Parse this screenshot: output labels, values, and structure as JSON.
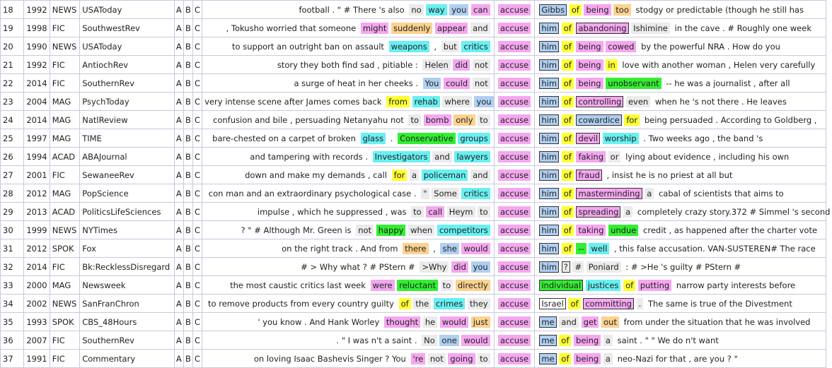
{
  "colors": {
    "0": "transparent",
    "1": "#f5a7f0",
    "2": "#fbd28e",
    "3": "#69f0f2",
    "4": "#ffff33",
    "5": "#33ee33",
    "6": "#b0cff2",
    "7": "#ebebeb",
    "8": "#f5a7f0"
  },
  "node": {
    "word": "accuse",
    "color": 8
  },
  "options": [
    "A",
    "B",
    "C"
  ],
  "rows": [
    {
      "num": "18",
      "year": "1992",
      "genre": "NEWS",
      "source": "USAToday",
      "left": [
        [
          "football . \" # There 's also",
          0
        ],
        [
          "no",
          7
        ],
        [
          "way",
          3
        ],
        [
          "you",
          6
        ],
        [
          "can",
          1
        ]
      ],
      "right": [
        [
          "Gibbs",
          6,
          1
        ],
        [
          "of",
          4
        ],
        [
          "being",
          1
        ],
        [
          "too",
          2
        ],
        [
          "stodgy or predictable (though he still has",
          0
        ]
      ]
    },
    {
      "num": "19",
      "year": "1998",
      "genre": "FIC",
      "source": "SouthwestRev",
      "left": [
        [
          ", Tokusho worried that someone",
          0
        ],
        [
          "might",
          1
        ],
        [
          "suddenly",
          2
        ],
        [
          "appear",
          1
        ],
        [
          "and",
          7
        ]
      ],
      "right": [
        [
          "him",
          6,
          1
        ],
        [
          "of",
          4
        ],
        [
          "abandoning",
          1,
          1
        ],
        [
          "Ishimine",
          7
        ],
        [
          "in the cave . # Roughly one week",
          0
        ]
      ]
    },
    {
      "num": "20",
      "year": "1990",
      "genre": "NEWS",
      "source": "USAToday",
      "left": [
        [
          "to support an outright ban on assault",
          0
        ],
        [
          "weapons",
          3
        ],
        [
          ",",
          0
        ],
        [
          "but",
          7
        ],
        [
          "critics",
          3
        ]
      ],
      "right": [
        [
          "him",
          6,
          1
        ],
        [
          "of",
          4
        ],
        [
          "being",
          1
        ],
        [
          "cowed",
          1
        ],
        [
          "by the powerful NRA . How do you",
          0
        ]
      ]
    },
    {
      "num": "21",
      "year": "1992",
      "genre": "FIC",
      "source": "AntiochRev",
      "left": [
        [
          "story they both find sad , pitiable :",
          0
        ],
        [
          "Helen",
          7
        ],
        [
          "did",
          1
        ],
        [
          "not",
          7
        ]
      ],
      "right": [
        [
          "him",
          6,
          1
        ],
        [
          "of",
          4
        ],
        [
          "being",
          1
        ],
        [
          "in",
          4
        ],
        [
          "love with another woman , Helen very carefully",
          0
        ]
      ]
    },
    {
      "num": "22",
      "year": "2014",
      "genre": "FIC",
      "source": "SouthernRev",
      "left": [
        [
          "a surge of heat in her cheeks .",
          0
        ],
        [
          "You",
          6
        ],
        [
          "could",
          1
        ],
        [
          "not",
          7
        ]
      ],
      "right": [
        [
          "him",
          6,
          1
        ],
        [
          "of",
          4
        ],
        [
          "being",
          1
        ],
        [
          "unobservant",
          5
        ],
        [
          "-- he was a journalist , after all",
          0
        ]
      ]
    },
    {
      "num": "23",
      "year": "2004",
      "genre": "MAG",
      "source": "PsychToday",
      "left": [
        [
          "very intense scene after James comes back",
          0
        ],
        [
          "from",
          4
        ],
        [
          "rehab",
          3
        ],
        [
          "where",
          7
        ],
        [
          "you",
          6
        ]
      ],
      "right": [
        [
          "him",
          6,
          1
        ],
        [
          "of",
          4
        ],
        [
          "controlling",
          1,
          1
        ],
        [
          "even",
          7
        ],
        [
          "when he 's not there . He leaves",
          0
        ]
      ]
    },
    {
      "num": "24",
      "year": "2014",
      "genre": "MAG",
      "source": "NatlReview",
      "left": [
        [
          "confusion and bile , persuading Netanyahu not",
          0
        ],
        [
          "to",
          7
        ],
        [
          "bomb",
          1
        ],
        [
          "only",
          2
        ],
        [
          "to",
          7
        ]
      ],
      "right": [
        [
          "him",
          6,
          1
        ],
        [
          "of",
          4
        ],
        [
          "cowardice",
          6,
          1
        ],
        [
          "for",
          4
        ],
        [
          "being persuaded . According to Goldberg ,",
          0
        ]
      ]
    },
    {
      "num": "25",
      "year": "1997",
      "genre": "MAG",
      "source": "TIME",
      "left": [
        [
          "bare-chested on a carpet of broken",
          0
        ],
        [
          "glass",
          3
        ],
        [
          ".",
          0
        ],
        [
          "Conservative",
          5
        ],
        [
          "groups",
          3
        ]
      ],
      "right": [
        [
          "him",
          6,
          1
        ],
        [
          "of",
          4
        ],
        [
          "devil",
          1,
          1
        ],
        [
          "worship",
          3
        ],
        [
          ". Two weeks ago , the band 's",
          0
        ]
      ]
    },
    {
      "num": "26",
      "year": "1994",
      "genre": "ACAD",
      "source": "ABAJournal",
      "left": [
        [
          "and tampering with records .",
          0
        ],
        [
          "Investigators",
          3
        ],
        [
          "and",
          7
        ],
        [
          "lawyers",
          3
        ]
      ],
      "right": [
        [
          "him",
          6,
          1
        ],
        [
          "of",
          4
        ],
        [
          "faking",
          1
        ],
        [
          "or",
          7
        ],
        [
          "lying about evidence , including his own",
          0
        ]
      ]
    },
    {
      "num": "27",
      "year": "2001",
      "genre": "FIC",
      "source": "SewaneeRev",
      "left": [
        [
          "down and make my demands , call",
          0
        ],
        [
          "for",
          4
        ],
        [
          "a",
          7
        ],
        [
          "policeman",
          3
        ],
        [
          "and",
          7
        ]
      ],
      "right": [
        [
          "him",
          6,
          1
        ],
        [
          "of",
          4
        ],
        [
          "fraud",
          1,
          1
        ],
        [
          ", insist he is no priest at all but",
          0
        ]
      ]
    },
    {
      "num": "28",
      "year": "2012",
      "genre": "MAG",
      "source": "PopScience",
      "left": [
        [
          "con man and an extraordinary psychological case .",
          0
        ],
        [
          "\"",
          7
        ],
        [
          "Some",
          7
        ],
        [
          "critics",
          3
        ]
      ],
      "right": [
        [
          "him",
          6,
          1
        ],
        [
          "of",
          4
        ],
        [
          "masterminding",
          1,
          1
        ],
        [
          "a",
          7
        ],
        [
          "cabal of scientists that aims to",
          0
        ]
      ]
    },
    {
      "num": "29",
      "year": "2013",
      "genre": "ACAD",
      "source": "PoliticsLifeSciences",
      "left": [
        [
          "impulse , which he suppressed , was",
          0
        ],
        [
          "to",
          7
        ],
        [
          "call",
          1
        ],
        [
          "Heym",
          7
        ],
        [
          "to",
          7
        ]
      ],
      "right": [
        [
          "him",
          6,
          1
        ],
        [
          "of",
          4
        ],
        [
          "spreading",
          1,
          1
        ],
        [
          "a",
          7
        ],
        [
          "completely crazy story.372 # Simmel 's second",
          0
        ]
      ]
    },
    {
      "num": "30",
      "year": "1999",
      "genre": "NEWS",
      "source": "NYTimes",
      "left": [
        [
          "? \" # Although Mr. Green is",
          0
        ],
        [
          "not",
          7
        ],
        [
          "happy",
          5
        ],
        [
          "when",
          7
        ],
        [
          "competitors",
          3
        ]
      ],
      "right": [
        [
          "him",
          6,
          1
        ],
        [
          "of",
          4
        ],
        [
          "taking",
          1
        ],
        [
          "undue",
          5
        ],
        [
          "credit , as happened after the charter vote",
          0
        ]
      ]
    },
    {
      "num": "31",
      "year": "2012",
      "genre": "SPOK",
      "source": "Fox",
      "left": [
        [
          "on the right track . And from",
          0
        ],
        [
          "there",
          2
        ],
        [
          ",",
          0
        ],
        [
          "she",
          6
        ],
        [
          "would",
          1
        ]
      ],
      "right": [
        [
          "him",
          6,
          1
        ],
        [
          "of",
          4
        ],
        [
          "--",
          5
        ],
        [
          "well",
          3
        ],
        [
          ", this false accusation. VAN-SUSTEREN# The race",
          0
        ]
      ]
    },
    {
      "num": "32",
      "year": "2014",
      "genre": "FIC",
      "source": "Bk:RecklessDisregard",
      "left": [
        [
          "# > Why what ? # PStern #",
          0
        ],
        [
          ">Why",
          7
        ],
        [
          "did",
          1
        ],
        [
          "you",
          6
        ]
      ],
      "right": [
        [
          "him",
          6,
          1
        ],
        [
          "?",
          7,
          1
        ],
        [
          "#",
          7
        ],
        [
          "Poniard",
          7
        ],
        [
          ": # >He 's guilty # PStern #",
          0
        ]
      ]
    },
    {
      "num": "33",
      "year": "2000",
      "genre": "MAG",
      "source": "Newsweek",
      "left": [
        [
          "the most caustic critics last week",
          0
        ],
        [
          "were",
          1
        ],
        [
          "reluctant",
          5
        ],
        [
          "to",
          7
        ],
        [
          "directly",
          2
        ]
      ],
      "right": [
        [
          "individual",
          5,
          1
        ],
        [
          "justices",
          3
        ],
        [
          "of",
          4
        ],
        [
          "putting",
          1
        ],
        [
          "narrow party interests before",
          0
        ]
      ]
    },
    {
      "num": "34",
      "year": "2002",
      "genre": "NEWS",
      "source": "SanFranChron",
      "left": [
        [
          "to remove products from every country guilty",
          0
        ],
        [
          "of",
          4
        ],
        [
          "the",
          7
        ],
        [
          "crimes",
          3
        ],
        [
          "they",
          7
        ]
      ],
      "right": [
        [
          "Israel",
          0,
          1
        ],
        [
          "of",
          4
        ],
        [
          "committing",
          1,
          1
        ],
        [
          ".",
          7
        ],
        [
          "The same is true of the Divestment",
          0
        ]
      ]
    },
    {
      "num": "35",
      "year": "1993",
      "genre": "SPOK",
      "source": "CBS_48Hours",
      "left": [
        [
          "' you know . And Hank Worley",
          0
        ],
        [
          "thought",
          1
        ],
        [
          "he",
          7
        ],
        [
          "would",
          1
        ],
        [
          "just",
          2
        ]
      ],
      "right": [
        [
          "me",
          6,
          1
        ],
        [
          "and",
          7
        ],
        [
          "get",
          1
        ],
        [
          "out",
          2
        ],
        [
          "from under the situation that he was involved",
          0
        ]
      ]
    },
    {
      "num": "36",
      "year": "2007",
      "genre": "FIC",
      "source": "SouthernRev",
      "left": [
        [
          ". \" I was n't a saint .",
          0
        ],
        [
          "No",
          7
        ],
        [
          "one",
          6
        ],
        [
          "would",
          1
        ]
      ],
      "right": [
        [
          "me",
          6,
          1
        ],
        [
          "of",
          4
        ],
        [
          "being",
          1
        ],
        [
          "a",
          7
        ],
        [
          "saint . \" \" We do n't want",
          0
        ]
      ]
    },
    {
      "num": "37",
      "year": "1991",
      "genre": "FIC",
      "source": "Commentary",
      "left": [
        [
          "on loving Isaac Bashevis Singer ? You",
          0
        ],
        [
          "'re",
          1
        ],
        [
          "not",
          7
        ],
        [
          "going",
          1
        ],
        [
          "to",
          7
        ]
      ],
      "right": [
        [
          "me",
          6,
          1
        ],
        [
          "of",
          4
        ],
        [
          "being",
          1
        ],
        [
          "a",
          7
        ],
        [
          "neo-Nazi for that , are you ? \"",
          0
        ]
      ]
    }
  ]
}
